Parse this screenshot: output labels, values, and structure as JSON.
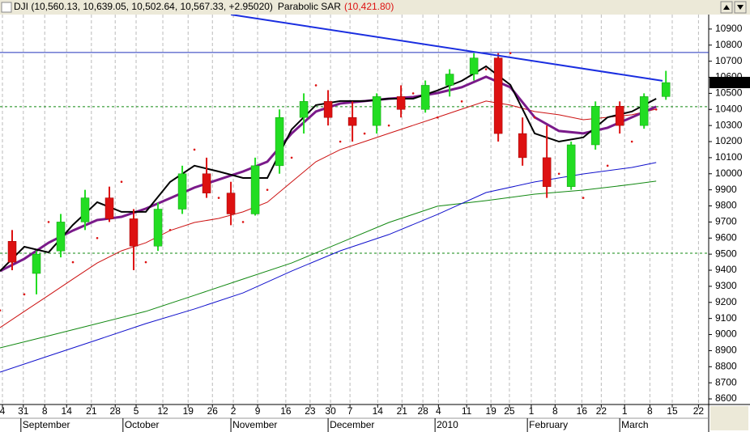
{
  "chart_data": {
    "type": "candlestick",
    "title": "DJI (10,560.13, 10,639.05, 10,502.64, 10,567.33, +2.95020)",
    "indicator": "Parabolic SAR",
    "indicator_value": "(10,421.80)",
    "last_price": 10567.33,
    "ylim": [
      8565,
      10990
    ],
    "yticks": [
      8600,
      8700,
      8800,
      8900,
      9000,
      9100,
      9200,
      9300,
      9400,
      9500,
      9600,
      9700,
      9800,
      9900,
      10000,
      10100,
      10200,
      10300,
      10400,
      10500,
      10600,
      10700,
      10800,
      10900
    ],
    "xlim": [
      0,
      145.8
    ],
    "xticks": [
      {
        "value": 0.5,
        "label": "4"
      },
      {
        "value": 4.8,
        "label": "31"
      },
      {
        "value": 9.2,
        "label": "8"
      },
      {
        "value": 13.7,
        "label": "14"
      },
      {
        "value": 18.8,
        "label": "21"
      },
      {
        "value": 23.7,
        "label": "28"
      },
      {
        "value": 28,
        "label": "5"
      },
      {
        "value": 33.5,
        "label": "12"
      },
      {
        "value": 38.7,
        "label": "19"
      },
      {
        "value": 43.7,
        "label": "26"
      },
      {
        "value": 48,
        "label": "2"
      },
      {
        "value": 53,
        "label": "9"
      },
      {
        "value": 58.8,
        "label": "16"
      },
      {
        "value": 63.8,
        "label": "23"
      },
      {
        "value": 68,
        "label": "30"
      },
      {
        "value": 72,
        "label": "7"
      },
      {
        "value": 77.7,
        "label": "14"
      },
      {
        "value": 82.7,
        "label": "21"
      },
      {
        "value": 87,
        "label": "28"
      },
      {
        "value": 90.2,
        "label": "4"
      },
      {
        "value": 96,
        "label": "11"
      },
      {
        "value": 101,
        "label": "19"
      },
      {
        "value": 104.8,
        "label": "25"
      },
      {
        "value": 109.3,
        "label": "1"
      },
      {
        "value": 114.2,
        "label": "8"
      },
      {
        "value": 119.7,
        "label": "16"
      },
      {
        "value": 123.7,
        "label": "22"
      },
      {
        "value": 128.5,
        "label": "1"
      },
      {
        "value": 133.7,
        "label": "8"
      },
      {
        "value": 138.3,
        "label": "15"
      },
      {
        "value": 143.7,
        "label": "22"
      }
    ],
    "month_ticks": [
      {
        "value": 4.3,
        "label": "September"
      },
      {
        "value": 25.3,
        "label": "October"
      },
      {
        "value": 47.5,
        "label": "November"
      },
      {
        "value": 67.5,
        "label": "December"
      },
      {
        "value": 89.5,
        "label": "2010"
      },
      {
        "value": 108.5,
        "label": "February"
      },
      {
        "value": 127.5,
        "label": "March"
      }
    ],
    "grid": true,
    "up_color": "#22dd22",
    "down_color": "#dd1111",
    "candles": {
      "x": [
        2.5,
        7.5,
        12.5,
        17.5,
        22.5,
        27.5,
        32.5,
        37.5,
        42.5,
        47.5,
        52.5,
        57.5,
        62.5,
        67.5,
        72.5,
        77.5,
        82.5,
        87.5,
        92.5,
        97.5,
        102.5,
        107.5,
        112.5,
        117.5,
        122.5,
        127.5,
        132.5,
        137
      ],
      "open": [
        9580,
        9380,
        9520,
        9700,
        9850,
        9720,
        9550,
        9780,
        10000,
        9880,
        9750,
        10050,
        10350,
        10450,
        10350,
        10300,
        10480,
        10400,
        10550,
        10620,
        10720,
        10250,
        10100,
        9920,
        10180,
        10420,
        10300,
        10480
      ],
      "high": [
        9650,
        9520,
        9750,
        9900,
        9920,
        9780,
        9820,
        10050,
        10100,
        9950,
        10100,
        10400,
        10500,
        10520,
        10450,
        10500,
        10550,
        10580,
        10650,
        10750,
        10750,
        10350,
        10300,
        10200,
        10450,
        10450,
        10500,
        10640
      ],
      "low": [
        9400,
        9250,
        9480,
        9650,
        9700,
        9400,
        9520,
        9750,
        9850,
        9680,
        9740,
        10000,
        10250,
        10300,
        10200,
        10250,
        10350,
        10380,
        10480,
        10580,
        10200,
        10050,
        9850,
        9900,
        10150,
        10250,
        10280,
        10460
      ],
      "close": [
        9450,
        9500,
        9700,
        9850,
        9720,
        9550,
        9780,
        10000,
        9880,
        9750,
        10050,
        10350,
        10450,
        10350,
        10300,
        10480,
        10400,
        10550,
        10620,
        10720,
        10250,
        10100,
        9920,
        10180,
        10420,
        10300,
        10480,
        10567
      ]
    },
    "series": [
      {
        "color": "#000000",
        "width": 2,
        "x": [
          0,
          5,
          10,
          15,
          20,
          25,
          30,
          35,
          40,
          45,
          50,
          55,
          60,
          65,
          70,
          75,
          80,
          85,
          90,
          95,
          100,
          105,
          110,
          115,
          120,
          125,
          130,
          135
        ],
        "values": [
          9395,
          9546,
          9511,
          9682,
          9823,
          9763,
          9763,
          9949,
          10050,
          10014,
          9974,
          9974,
          10276,
          10427,
          10452,
          10452,
          10467,
          10467,
          10518,
          10578,
          10668,
          10553,
          10251,
          10200,
          10226,
          10351,
          10387,
          10467
        ]
      },
      {
        "color": "#7a1a8a",
        "width": 3,
        "x": [
          0,
          5,
          10,
          15,
          20,
          25,
          30,
          35,
          40,
          45,
          50,
          55,
          60,
          65,
          70,
          75,
          80,
          85,
          90,
          95,
          100,
          105,
          110,
          115,
          120,
          125,
          130,
          135
        ],
        "values": [
          9395,
          9471,
          9571,
          9647,
          9712,
          9732,
          9783,
          9848,
          9914,
          9964,
          10014,
          10075,
          10251,
          10387,
          10437,
          10452,
          10467,
          10477,
          10502,
          10538,
          10603,
          10538,
          10351,
          10266,
          10251,
          10286,
          10351,
          10417
        ]
      },
      {
        "color": "#cc1111",
        "width": 1,
        "x": [
          0,
          5,
          10,
          15,
          20,
          25,
          30,
          35,
          40,
          45,
          50,
          55,
          60,
          65,
          70,
          75,
          80,
          85,
          90,
          95,
          100,
          105,
          110,
          115,
          120,
          125,
          130,
          135
        ],
        "values": [
          9043,
          9144,
          9244,
          9345,
          9445,
          9521,
          9571,
          9647,
          9697,
          9722,
          9763,
          9823,
          9949,
          10075,
          10150,
          10200,
          10251,
          10301,
          10351,
          10402,
          10452,
          10427,
          10387,
          10367,
          10336,
          10351,
          10367,
          10402
        ]
      },
      {
        "color": "#1010cc",
        "width": 1,
        "x": [
          0,
          10,
          20,
          30,
          40,
          50,
          60,
          70,
          80,
          90,
          100,
          110,
          120,
          130,
          135
        ],
        "values": [
          8766,
          8867,
          8967,
          9068,
          9159,
          9259,
          9395,
          9521,
          9622,
          9747,
          9883,
          9949,
          9999,
          10039,
          10070
        ]
      },
      {
        "color": "#118811",
        "width": 1,
        "x": [
          0,
          10,
          20,
          30,
          40,
          50,
          60,
          70,
          80,
          90,
          100,
          110,
          120,
          130,
          135
        ],
        "values": [
          8917,
          8992,
          9068,
          9144,
          9244,
          9345,
          9445,
          9571,
          9697,
          9798,
          9833,
          9873,
          9898,
          9934,
          9954
        ]
      }
    ],
    "sar": {
      "color": "#dd1111",
      "x": [
        0,
        5,
        10,
        15,
        20,
        25,
        30,
        35,
        40,
        45,
        50,
        55,
        60,
        65,
        70,
        75,
        80,
        85,
        90,
        95,
        100,
        105,
        110,
        115,
        120,
        125,
        130,
        135
      ],
      "values": [
        9150,
        9250,
        9700,
        9450,
        9600,
        9950,
        9450,
        9650,
        10150,
        9850,
        9700,
        9900,
        10100,
        10550,
        10200,
        10250,
        10300,
        10500,
        10350,
        10450,
        10650,
        10750,
        10350,
        10000,
        9850,
        10050,
        10200,
        10400
      ]
    },
    "trendline": {
      "color": "#1a2ee0",
      "x": [
        47.5,
        136.3
      ],
      "values": [
        10990,
        10578
      ]
    },
    "hlines": [
      {
        "value": 10754,
        "color": "#2233bb",
        "style": "solid"
      },
      {
        "value": 10417,
        "color": "#118811",
        "style": "dashed"
      },
      {
        "value": 9506,
        "color": "#118811",
        "style": "dashed"
      }
    ]
  }
}
